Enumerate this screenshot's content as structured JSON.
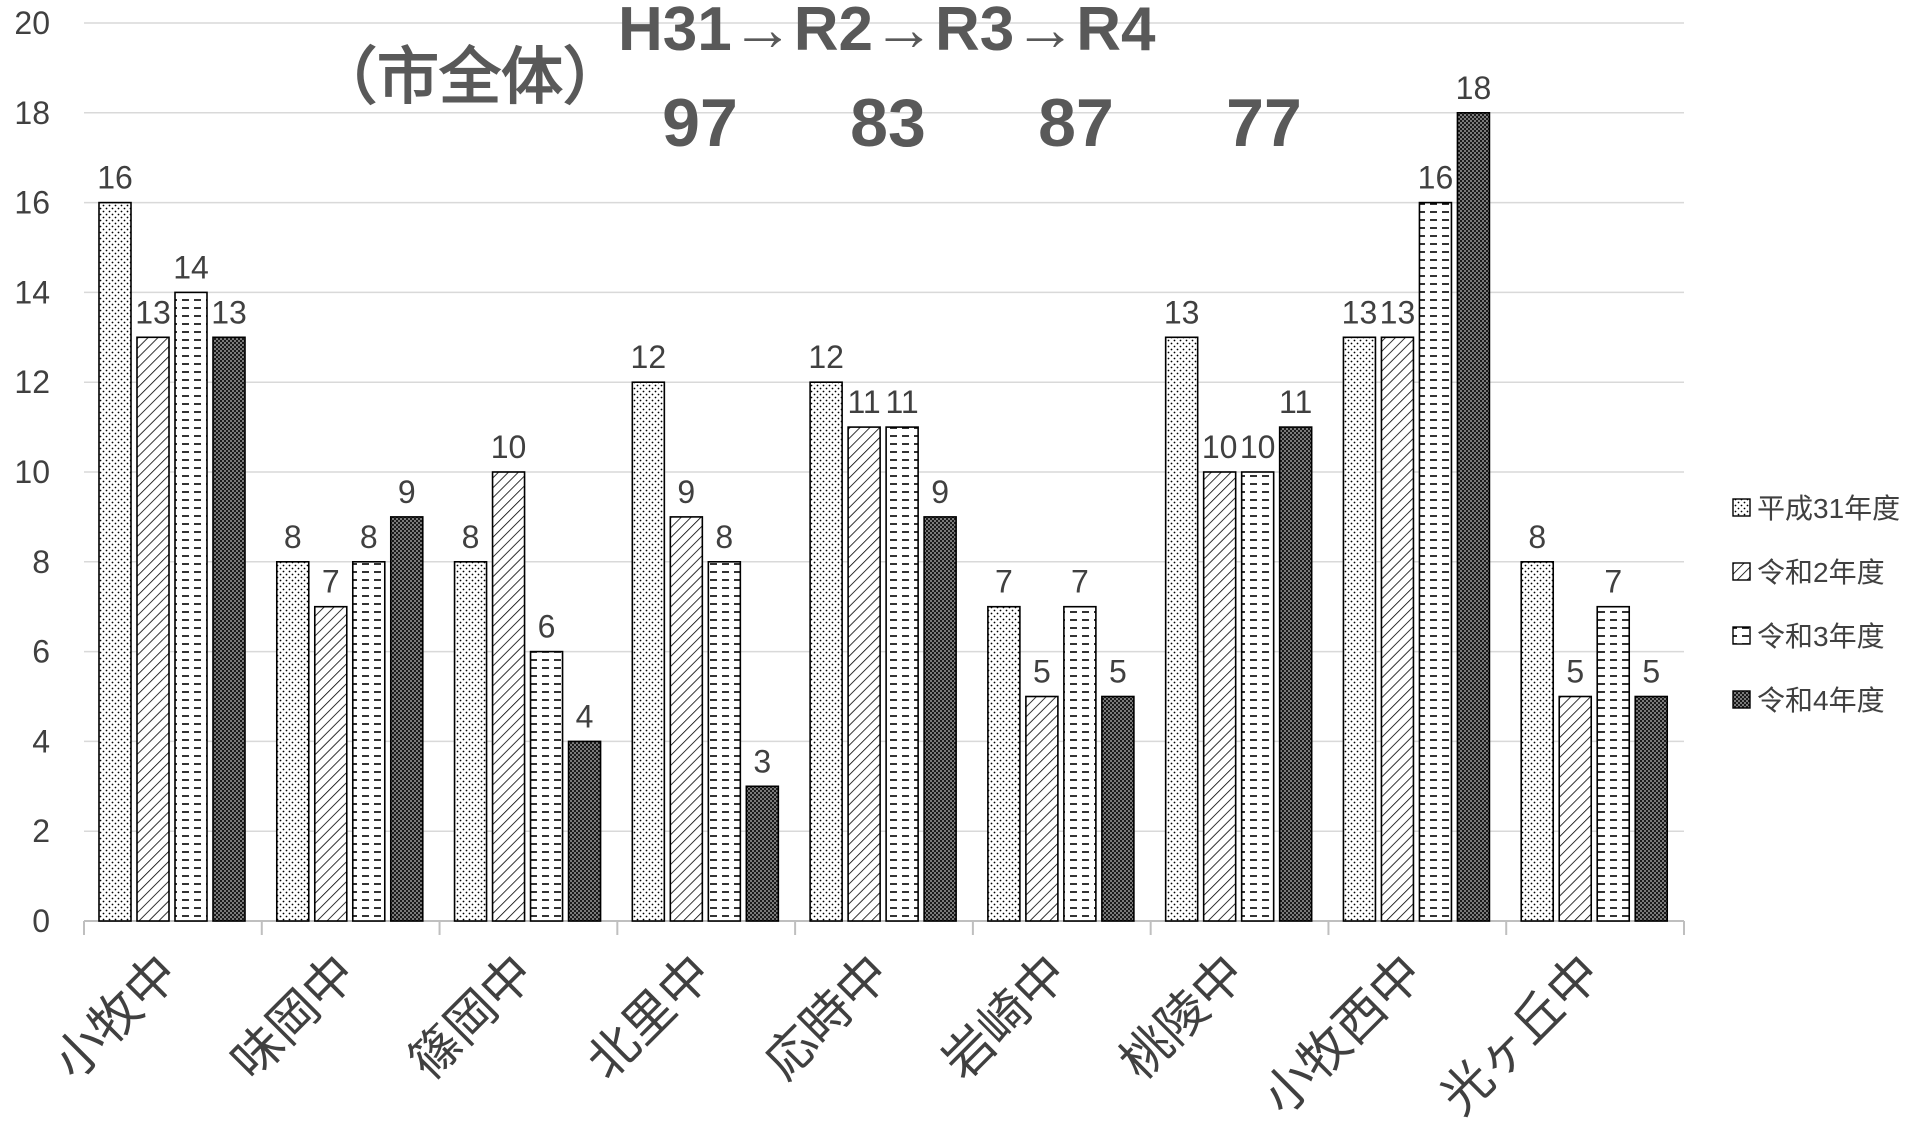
{
  "chart_data": {
    "type": "bar",
    "title_prefix": "（市全体）",
    "title_years": "H31→R2→R3→R4",
    "title_totals": [
      "97",
      "83",
      "87",
      "77"
    ],
    "categories": [
      "小牧中",
      "味岡中",
      "篠岡中",
      "北里中",
      "応時中",
      "岩崎中",
      "桃陵中",
      "小牧西中",
      "光ヶ丘中"
    ],
    "series": [
      {
        "name": "平成31年度",
        "pattern": "dots",
        "values": [
          16,
          8,
          8,
          12,
          12,
          7,
          13,
          13,
          8
        ]
      },
      {
        "name": "令和2年度",
        "pattern": "diagonal",
        "values": [
          13,
          7,
          10,
          9,
          11,
          5,
          10,
          13,
          5
        ]
      },
      {
        "name": "令和3年度",
        "pattern": "dashes",
        "values": [
          14,
          8,
          6,
          8,
          11,
          7,
          10,
          16,
          7
        ]
      },
      {
        "name": "令和4年度",
        "pattern": "dense",
        "values": [
          13,
          9,
          4,
          3,
          9,
          5,
          11,
          18,
          5
        ]
      }
    ],
    "ylim": [
      0,
      20
    ],
    "ytick_step": 2,
    "grid": true,
    "legend_position": "right",
    "colors": {
      "gridline": "#d9d9d9",
      "axis": "#bfbfbf",
      "bar_stroke": "#000000",
      "text": "#404040",
      "title": "#595959"
    }
  }
}
